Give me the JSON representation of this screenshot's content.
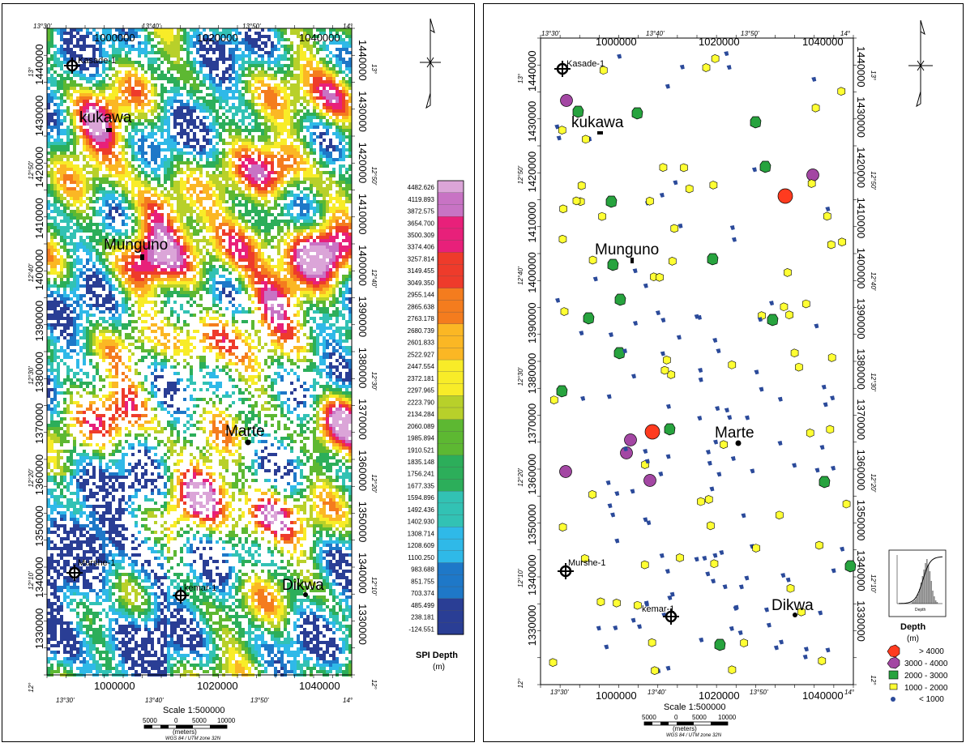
{
  "left_map": {
    "utm_x": [
      "1000000",
      "1020000",
      "1040000"
    ],
    "utm_y": [
      "1440000",
      "1430000",
      "1420000",
      "1410000",
      "1400000",
      "1390000",
      "1380000",
      "1370000",
      "1360000",
      "1350000",
      "1340000",
      "1330000"
    ],
    "deg_top": [
      "13°30'",
      "13°40'",
      "13°50'",
      "14°"
    ],
    "deg_bottom": [
      "13°30'",
      "13°40'",
      "13°50'",
      "14°"
    ],
    "deg_side": [
      "13°",
      "12°50'",
      "12°40'",
      "12°30'",
      "12°20'",
      "12°10'",
      "12°"
    ],
    "places": [
      "kukawa",
      "Munguno",
      "Marte",
      "Dikwa"
    ],
    "wells": [
      "Kasade-1",
      "Murshe-1",
      "kemar-1"
    ],
    "legend": {
      "title": "SPI Depth",
      "unit": "(m)",
      "values": [
        "4482.626",
        "4119.893",
        "3872.575",
        "3654.700",
        "3500.309",
        "3374.406",
        "3257.814",
        "3149.455",
        "3049.350",
        "2955.144",
        "2865.638",
        "2763.178",
        "2680.739",
        "2601.833",
        "2522.927",
        "2447.554",
        "2372.181",
        "2297.965",
        "2223.790",
        "2134.284",
        "2060.089",
        "1985.894",
        "1910.521",
        "1835.148",
        "1756.241",
        "1677.335",
        "1594.896",
        "1492.436",
        "1402.930",
        "1308.714",
        "1208.609",
        "1100.250",
        "983.688",
        "851.755",
        "703.374",
        "485.499",
        "238.181",
        "-124.551"
      ]
    },
    "scale": {
      "title": "Scale 1:500000",
      "ticks": [
        "5000",
        "0",
        "5000",
        "10000"
      ],
      "unit": "(meters)",
      "projection": "WGS 84 / UTM zone 32N"
    }
  },
  "right_map": {
    "utm_x": [
      "1000000",
      "1020000",
      "1040000"
    ],
    "utm_y": [
      "1440000",
      "1430000",
      "1420000",
      "1410000",
      "1400000",
      "1390000",
      "1380000",
      "1370000",
      "1360000",
      "1350000",
      "1340000",
      "1330000"
    ],
    "deg_top": [
      "13°30'",
      "13°40'",
      "13°50'",
      "14°"
    ],
    "deg_bottom": [
      "13°30'",
      "13°40'",
      "13°50'",
      "14°"
    ],
    "deg_side": [
      "13°",
      "12°50'",
      "12°40'",
      "12°30'",
      "12°20'",
      "12°10'",
      "12°"
    ],
    "places": [
      "kukawa",
      "Munguno",
      "Marte",
      "Dikwa"
    ],
    "wells": [
      "Kasade-1",
      "Murshe-1",
      "kemar-1"
    ],
    "legend": {
      "title": "Depth",
      "unit": "(m)",
      "classes": [
        {
          "label": "> 4000",
          "color": "#ff3b1f"
        },
        {
          "label": "3000 - 4000",
          "color": "#a347a3"
        },
        {
          "label": "2000 - 3000",
          "color": "#27a33e"
        },
        {
          "label": "1000 - 2000",
          "color": "#ffff33"
        },
        {
          "label": "< 1000",
          "color": "#2b4a9a"
        }
      ]
    },
    "histogram": {
      "xlabel": "Depth"
    },
    "scale": {
      "title": "Scale 1:500000",
      "ticks": [
        "5000",
        "0",
        "5000",
        "10000"
      ],
      "unit": "(meters)",
      "projection": "WGS 84 / UTM zone 32N"
    }
  },
  "colors": {
    "ramp": [
      "#2a3e95",
      "#1e78c8",
      "#2fb9e8",
      "#32c2b4",
      "#2cae5a",
      "#5db832",
      "#b8d02a",
      "#f8ec28",
      "#fbb724",
      "#f47c1e",
      "#ee3b2b",
      "#e8207a",
      "#c873c4",
      "#dba5d8"
    ]
  }
}
